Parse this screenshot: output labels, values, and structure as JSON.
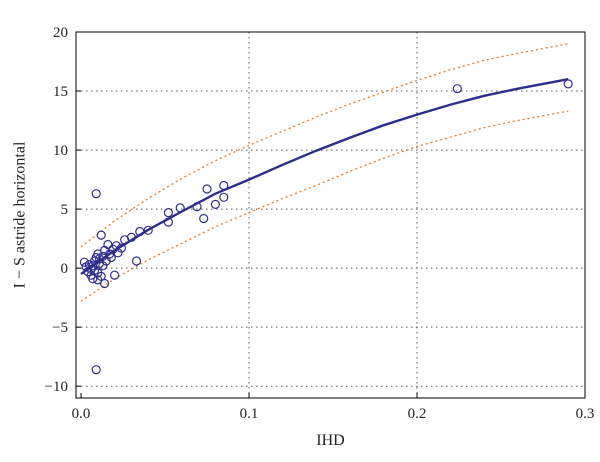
{
  "chart_data": {
    "type": "scatter",
    "xlabel": "IHD",
    "ylabel": "I − S astride horizontal",
    "xlim": [
      -0.003,
      0.3
    ],
    "ylim": [
      -11,
      20
    ],
    "xticks": [
      0.0,
      0.1,
      0.2,
      0.3
    ],
    "xtick_labels": [
      "0.0",
      "0.1",
      "0.2",
      "0.3"
    ],
    "yticks": [
      -10,
      -5,
      0,
      5,
      10,
      15,
      20
    ],
    "ytick_labels": [
      "−10",
      "−5",
      "0",
      "5",
      "10",
      "15",
      "20"
    ],
    "grid": true,
    "legend": "none",
    "colors": {
      "points": "#2c2c8c",
      "fit": "#2c2c8c",
      "band": "#e07a2c",
      "grid": "#555555",
      "frame": "#000000"
    },
    "points": [
      {
        "x": 0.002,
        "y": 0.5
      },
      {
        "x": 0.003,
        "y": 0.1
      },
      {
        "x": 0.004,
        "y": -0.3
      },
      {
        "x": 0.005,
        "y": 0.3
      },
      {
        "x": 0.006,
        "y": -0.1
      },
      {
        "x": 0.006,
        "y": -0.6
      },
      {
        "x": 0.007,
        "y": 0.2
      },
      {
        "x": 0.007,
        "y": -0.9
      },
      {
        "x": 0.008,
        "y": 0.6
      },
      {
        "x": 0.008,
        "y": -0.2
      },
      {
        "x": 0.009,
        "y": 6.3
      },
      {
        "x": 0.009,
        "y": 0.9
      },
      {
        "x": 0.009,
        "y": -8.6
      },
      {
        "x": 0.01,
        "y": 1.2
      },
      {
        "x": 0.01,
        "y": -0.4
      },
      {
        "x": 0.01,
        "y": -1.0
      },
      {
        "x": 0.011,
        "y": 0.4
      },
      {
        "x": 0.011,
        "y": 0.8
      },
      {
        "x": 0.012,
        "y": 2.8
      },
      {
        "x": 0.012,
        "y": -0.7
      },
      {
        "x": 0.013,
        "y": 1.0
      },
      {
        "x": 0.013,
        "y": 0.2
      },
      {
        "x": 0.014,
        "y": 1.5
      },
      {
        "x": 0.014,
        "y": -1.3
      },
      {
        "x": 0.015,
        "y": 0.6
      },
      {
        "x": 0.016,
        "y": 2.0
      },
      {
        "x": 0.017,
        "y": 1.2
      },
      {
        "x": 0.018,
        "y": 0.9
      },
      {
        "x": 0.019,
        "y": 1.6
      },
      {
        "x": 0.02,
        "y": -0.6
      },
      {
        "x": 0.021,
        "y": 1.9
      },
      {
        "x": 0.022,
        "y": 1.3
      },
      {
        "x": 0.024,
        "y": 1.7
      },
      {
        "x": 0.026,
        "y": 2.4
      },
      {
        "x": 0.03,
        "y": 2.6
      },
      {
        "x": 0.033,
        "y": 0.6
      },
      {
        "x": 0.035,
        "y": 3.1
      },
      {
        "x": 0.04,
        "y": 3.2
      },
      {
        "x": 0.052,
        "y": 3.9
      },
      {
        "x": 0.052,
        "y": 4.7
      },
      {
        "x": 0.059,
        "y": 5.1
      },
      {
        "x": 0.069,
        "y": 5.2
      },
      {
        "x": 0.073,
        "y": 4.2
      },
      {
        "x": 0.075,
        "y": 6.7
      },
      {
        "x": 0.08,
        "y": 5.4
      },
      {
        "x": 0.085,
        "y": 7.0
      },
      {
        "x": 0.085,
        "y": 6.0
      },
      {
        "x": 0.224,
        "y": 15.2
      },
      {
        "x": 0.29,
        "y": 15.6
      }
    ],
    "fit": {
      "x": [
        0.0,
        0.02,
        0.04,
        0.06,
        0.08,
        0.1,
        0.12,
        0.14,
        0.16,
        0.18,
        0.2,
        0.22,
        0.24,
        0.26,
        0.29
      ],
      "y": [
        -0.5,
        1.5,
        3.25,
        4.8,
        6.3,
        7.5,
        8.75,
        9.95,
        11.05,
        12.1,
        13.0,
        13.85,
        14.6,
        15.2,
        16.0
      ]
    },
    "upper_band": {
      "x": [
        0.0,
        0.02,
        0.04,
        0.06,
        0.08,
        0.1,
        0.12,
        0.14,
        0.16,
        0.18,
        0.2,
        0.22,
        0.24,
        0.26,
        0.29
      ],
      "y": [
        1.8,
        4.0,
        5.9,
        7.6,
        9.1,
        10.4,
        11.6,
        12.8,
        13.9,
        14.9,
        15.9,
        16.8,
        17.6,
        18.2,
        19.0
      ]
    },
    "lower_band": {
      "x": [
        0.0,
        0.02,
        0.04,
        0.06,
        0.08,
        0.1,
        0.12,
        0.14,
        0.16,
        0.18,
        0.2,
        0.22,
        0.24,
        0.26,
        0.29
      ],
      "y": [
        -2.8,
        -0.9,
        0.7,
        2.1,
        3.5,
        4.7,
        5.9,
        7.0,
        8.2,
        9.3,
        10.3,
        11.1,
        11.9,
        12.5,
        13.3
      ]
    }
  }
}
